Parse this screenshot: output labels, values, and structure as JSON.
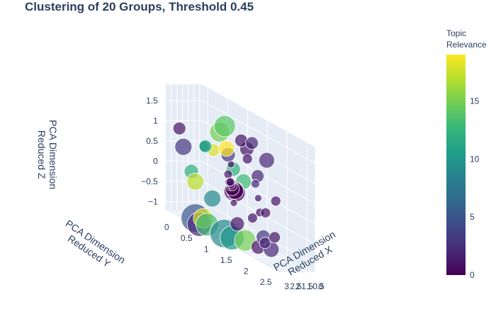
{
  "chart_data": {
    "type": "scatter3d",
    "title": "Clustering of 20 Groups, Threshold 0.45",
    "axes": {
      "x": {
        "label_lines": [
          "PCA Dimension",
          "Reduced X"
        ],
        "ticks": [
          "0",
          "0.5",
          "1",
          "1.5",
          "2",
          "2.5",
          "3"
        ]
      },
      "y": {
        "label_lines": [
          "PCA Dimension",
          "Reduced Y"
        ],
        "ticks": [
          "0",
          "0.5",
          "1",
          "1.5",
          "2",
          "2.5"
        ]
      },
      "z": {
        "label_lines": [
          "PCA Dimension",
          "Reduced Z"
        ],
        "ticks": [
          "1.5",
          "1",
          "0.5",
          "0",
          "−0.5",
          "−1"
        ]
      }
    },
    "colorbar": {
      "title_lines": [
        "Topic",
        "Relevance"
      ],
      "ticks": [
        "15",
        "10",
        "5",
        "0"
      ],
      "min": 0,
      "max": 19,
      "colorscale": "viridis"
    },
    "points": [
      {
        "x": 0.0,
        "y": 0.0,
        "z": 0.45,
        "relevance": 11,
        "size": 9
      },
      {
        "x": 0.1,
        "y": 0.0,
        "z": 0.45,
        "relevance": 10,
        "size": 8
      },
      {
        "x": 0.2,
        "y": 0.0,
        "z": 0.45,
        "relevance": 12,
        "size": 7
      },
      {
        "x": 0.6,
        "y": 0.8,
        "z": 0.0,
        "relevance": 1,
        "size": 6
      },
      {
        "x": 0.7,
        "y": 0.8,
        "z": 0.0,
        "relevance": 1,
        "size": 6
      },
      {
        "x": 0.9,
        "y": 0.9,
        "z": 0.0,
        "relevance": 1,
        "size": 6
      },
      {
        "x": 1.1,
        "y": 1.0,
        "z": 0.0,
        "relevance": 0,
        "size": 6
      },
      {
        "x": 1.3,
        "y": 1.0,
        "z": 0.0,
        "relevance": 0,
        "size": 6
      },
      {
        "x": 1.5,
        "y": 1.1,
        "z": 0.0,
        "relevance": 0,
        "size": 10
      },
      {
        "x": 1.6,
        "y": 1.2,
        "z": 0.0,
        "relevance": 0,
        "size": 12
      },
      {
        "x": 1.7,
        "y": 1.2,
        "z": 0.0,
        "relevance": 0,
        "size": 14
      },
      {
        "x": 1.8,
        "y": 1.3,
        "z": 0.0,
        "relevance": 0,
        "size": 12
      },
      {
        "x": 1.5,
        "y": 1.0,
        "z": 0.3,
        "relevance": 1,
        "size": 6
      },
      {
        "x": 1.6,
        "y": 1.1,
        "z": 0.6,
        "relevance": 1,
        "size": 5
      },
      {
        "x": 1.7,
        "y": 1.2,
        "z": -0.3,
        "relevance": 1,
        "size": 5
      },
      {
        "x": 1.4,
        "y": 1.3,
        "z": 1.3,
        "relevance": 1,
        "size": 9
      },
      {
        "x": 1.6,
        "y": 1.5,
        "z": 1.2,
        "relevance": 1,
        "size": 10
      },
      {
        "x": 1.5,
        "y": 1.6,
        "z": 1.4,
        "relevance": 2,
        "size": 9
      },
      {
        "x": 1.2,
        "y": 1.4,
        "z": 0.9,
        "relevance": 1,
        "size": 7
      },
      {
        "x": 1.9,
        "y": 1.8,
        "z": 0.5,
        "relevance": 2,
        "size": 6
      },
      {
        "x": 2.0,
        "y": 1.9,
        "z": 0.2,
        "relevance": 1,
        "size": 5
      },
      {
        "x": 2.2,
        "y": 2.0,
        "z": -0.1,
        "relevance": 1,
        "size": 6
      },
      {
        "x": 2.1,
        "y": 2.1,
        "z": -0.8,
        "relevance": 2,
        "size": 8
      },
      {
        "x": 1.8,
        "y": 1.7,
        "z": -0.4,
        "relevance": 1,
        "size": 7
      },
      {
        "x": 2.6,
        "y": 1.1,
        "z": 1.4,
        "relevance": 15,
        "size": 14
      },
      {
        "x": 2.5,
        "y": 1.2,
        "z": 1.6,
        "relevance": 14,
        "size": 15
      },
      {
        "x": 2.7,
        "y": 1.3,
        "z": 1.1,
        "relevance": 19,
        "size": 11
      },
      {
        "x": 2.8,
        "y": 1.0,
        "z": 0.9,
        "relevance": 18,
        "size": 9
      },
      {
        "x": 2.9,
        "y": 1.4,
        "z": 1.0,
        "relevance": 3,
        "size": 10
      },
      {
        "x": 2.8,
        "y": 1.5,
        "z": 0.7,
        "relevance": 12,
        "size": 10
      },
      {
        "x": 2.6,
        "y": 1.7,
        "z": 0.5,
        "relevance": 13,
        "size": 11
      },
      {
        "x": 2.4,
        "y": 2.0,
        "z": 0.8,
        "relevance": 2,
        "size": 9
      },
      {
        "x": 2.3,
        "y": 2.2,
        "z": 1.3,
        "relevance": 2,
        "size": 11
      },
      {
        "x": 3.0,
        "y": 0.3,
        "z": 0.6,
        "relevance": 3,
        "size": 12
      },
      {
        "x": 3.0,
        "y": 0.2,
        "z": 1.0,
        "relevance": 1,
        "size": 9
      },
      {
        "x": 3.0,
        "y": 0.5,
        "z": 0.1,
        "relevance": 12,
        "size": 10
      },
      {
        "x": 3.0,
        "y": 0.6,
        "z": -0.1,
        "relevance": 17,
        "size": 12
      },
      {
        "x": 2.9,
        "y": 1.0,
        "z": -0.3,
        "relevance": 9,
        "size": 12
      },
      {
        "x": 2.8,
        "y": 1.6,
        "z": -0.6,
        "relevance": 1,
        "size": 10
      },
      {
        "x": 2.6,
        "y": 2.2,
        "z": -0.6,
        "relevance": 3,
        "size": 10
      },
      {
        "x": 3.0,
        "y": 0.6,
        "z": -1.0,
        "relevance": 5,
        "size": 20
      },
      {
        "x": 3.0,
        "y": 0.7,
        "z": -1.1,
        "relevance": 2,
        "size": 17
      },
      {
        "x": 3.0,
        "y": 0.8,
        "z": -0.9,
        "relevance": 18,
        "size": 14
      },
      {
        "x": 3.0,
        "y": 0.9,
        "z": -1.0,
        "relevance": 13,
        "size": 16
      },
      {
        "x": 2.9,
        "y": 1.3,
        "z": -1.0,
        "relevance": 9,
        "size": 20
      },
      {
        "x": 2.9,
        "y": 1.5,
        "z": -1.0,
        "relevance": 10,
        "size": 17
      },
      {
        "x": 2.8,
        "y": 1.8,
        "z": -0.9,
        "relevance": 15,
        "size": 15
      },
      {
        "x": 2.7,
        "y": 2.1,
        "z": -0.9,
        "relevance": 1,
        "size": 10
      },
      {
        "x": 2.6,
        "y": 2.4,
        "z": -0.8,
        "relevance": 2,
        "size": 11
      },
      {
        "x": 2.3,
        "y": 2.4,
        "z": -0.5,
        "relevance": 1,
        "size": 8
      },
      {
        "x": 2.4,
        "y": 2.2,
        "z": 0.0,
        "relevance": 1,
        "size": 7
      },
      {
        "x": 2.2,
        "y": 2.4,
        "z": 0.4,
        "relevance": 1,
        "size": 7
      }
    ]
  }
}
